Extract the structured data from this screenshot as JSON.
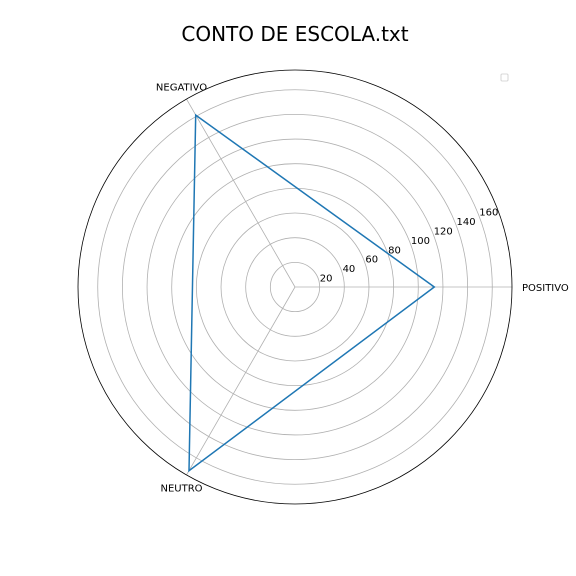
{
  "chart_data": {
    "type": "radar",
    "title": "CONTO DE ESCOLA.txt",
    "categories": [
      "POSITIVO",
      "NEGATIVO",
      "NEUTRO"
    ],
    "category_angles_deg": [
      0,
      120,
      240
    ],
    "series": [
      {
        "values": [
          113,
          161,
          172
        ],
        "color": "#1f77b4"
      }
    ],
    "radial_ticks": [
      20,
      40,
      60,
      80,
      100,
      120,
      140,
      160
    ],
    "rlim": [
      0,
      176
    ],
    "grid": true,
    "legend": {
      "position": "top-right",
      "entries": []
    }
  }
}
